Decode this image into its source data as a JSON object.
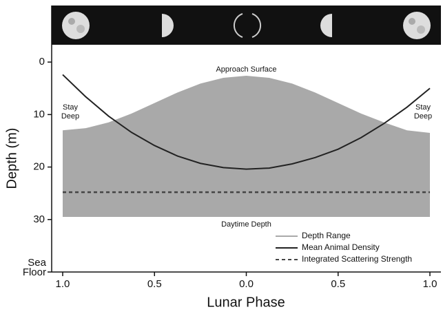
{
  "chart_data": {
    "type": "line",
    "x_label": "Lunar Phase",
    "y_label": "Depth (m)",
    "x": [
      -1,
      -0.875,
      -0.75,
      -0.625,
      -0.5,
      -0.375,
      -0.25,
      -0.125,
      0,
      0.125,
      0.25,
      0.375,
      0.5,
      0.625,
      0.75,
      0.875,
      1
    ],
    "xlim": [
      -1.06,
      1.06
    ],
    "xticks": [
      {
        "value": -1,
        "label": "1.0"
      },
      {
        "value": -0.5,
        "label": "0.5"
      },
      {
        "value": 0,
        "label": "0.0"
      },
      {
        "value": 0.5,
        "label": "0.5"
      },
      {
        "value": 1,
        "label": "1.0"
      }
    ],
    "ylim": [
      -3.3,
      40
    ],
    "y_inverted": true,
    "yticks": [
      0,
      10,
      20,
      30,
      {
        "value": 40,
        "label": "Sea Floor"
      }
    ],
    "series": [
      {
        "name": "Depth Range",
        "kind": "area",
        "color": "#a9a9a9",
        "values": [
          13.0,
          12.6,
          11.5,
          9.8,
          7.8,
          5.8,
          4.1,
          3.0,
          2.6,
          3.0,
          4.1,
          5.8,
          7.8,
          9.8,
          11.5,
          13.0,
          13.5
        ],
        "low": [
          29.5,
          29.5,
          29.5,
          29.5,
          29.5,
          29.5,
          29.5,
          29.5,
          29.5,
          29.5,
          29.5,
          29.5,
          29.5,
          29.5,
          29.5,
          29.5,
          29.5
        ]
      },
      {
        "name": "Mean Animal Density",
        "kind": "line",
        "color": "#222222",
        "values": [
          2.4,
          6.6,
          10.3,
          13.4,
          15.9,
          17.9,
          19.3,
          20.1,
          20.4,
          20.2,
          19.4,
          18.2,
          16.6,
          14.4,
          11.7,
          8.6,
          5.0
        ]
      },
      {
        "name": "Integrated Scattering Strength",
        "kind": "dashed",
        "color": "#444444",
        "values": [
          24.8,
          24.8,
          24.8,
          24.8,
          24.8,
          24.8,
          24.8,
          24.8,
          24.8,
          24.8,
          24.8,
          24.8,
          24.8,
          24.8,
          24.8,
          24.8,
          24.8
        ]
      }
    ],
    "annotations": [
      "Approach Surface",
      "Daytime Depth",
      "Stay Deep",
      "Stay Deep"
    ],
    "legend": "lower right"
  }
}
